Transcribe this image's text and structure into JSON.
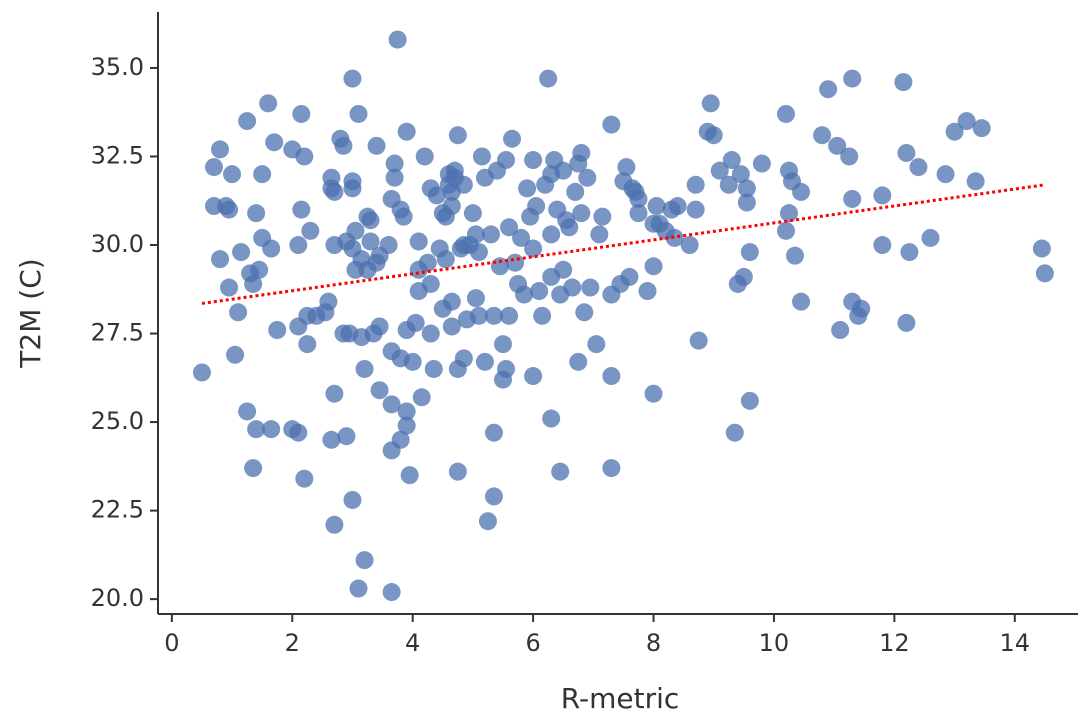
{
  "chart_data": {
    "type": "scatter",
    "xlabel": "R-metric",
    "ylabel": "T2M (C)",
    "color": "#4c72b0",
    "x": [
      0.5,
      0.7,
      0.7,
      0.8,
      0.8,
      0.95,
      0.9,
      0.95,
      1.0,
      1.05,
      1.1,
      1.15,
      1.25,
      1.25,
      1.3,
      1.35,
      1.35,
      1.4,
      1.4,
      1.45,
      1.5,
      1.5,
      1.6,
      1.65,
      1.65,
      1.7,
      1.75,
      2.0,
      2.0,
      2.1,
      2.1,
      2.1,
      2.15,
      2.15,
      2.2,
      2.25,
      2.25,
      2.2,
      2.3,
      2.4,
      2.55,
      2.6,
      2.65,
      2.65,
      2.65,
      2.7,
      2.7,
      2.7,
      2.7,
      2.8,
      2.85,
      2.85,
      2.9,
      2.9,
      2.95,
      3.0,
      3.0,
      3.0,
      3.05,
      3.05,
      3.0,
      3.0,
      3.1,
      3.15,
      3.15,
      3.1,
      3.2,
      3.2,
      3.25,
      3.25,
      3.3,
      3.3,
      3.35,
      3.4,
      3.4,
      3.45,
      3.45,
      3.45,
      3.6,
      3.65,
      3.65,
      3.65,
      3.65,
      3.65,
      3.7,
      3.7,
      3.75,
      3.8,
      3.8,
      3.8,
      3.85,
      3.9,
      3.9,
      3.9,
      3.9,
      3.95,
      4.0,
      4.05,
      4.1,
      4.1,
      4.1,
      4.15,
      4.2,
      4.25,
      4.3,
      4.3,
      4.3,
      4.35,
      4.4,
      4.45,
      4.5,
      4.5,
      4.55,
      4.55,
      4.6,
      4.6,
      4.65,
      4.65,
      4.65,
      4.65,
      4.7,
      4.7,
      4.75,
      4.75,
      4.75,
      4.8,
      4.85,
      4.85,
      4.85,
      4.9,
      4.95,
      5.0,
      5.05,
      5.05,
      5.1,
      5.1,
      5.15,
      5.2,
      5.2,
      5.25,
      5.3,
      5.35,
      5.35,
      5.35,
      5.4,
      5.45,
      5.5,
      5.5,
      5.55,
      5.55,
      5.6,
      5.6,
      5.65,
      5.7,
      5.75,
      5.8,
      5.85,
      5.9,
      5.95,
      6.0,
      6.0,
      6.0,
      6.05,
      6.1,
      6.15,
      6.2,
      6.25,
      6.3,
      6.3,
      6.3,
      6.3,
      6.35,
      6.4,
      6.45,
      6.45,
      6.5,
      6.5,
      6.55,
      6.6,
      6.65,
      6.7,
      6.75,
      6.75,
      6.8,
      6.8,
      6.85,
      6.9,
      6.95,
      7.05,
      7.1,
      7.15,
      7.3,
      7.3,
      7.3,
      7.3,
      7.45,
      7.5,
      7.55,
      7.6,
      7.65,
      7.7,
      7.75,
      7.75,
      7.9,
      8.0,
      8.0,
      8.0,
      8.05,
      8.1,
      8.2,
      8.3,
      8.35,
      8.4,
      8.6,
      8.7,
      8.7,
      8.75,
      8.9,
      8.95,
      9.0,
      9.1,
      9.25,
      9.3,
      9.35,
      9.4,
      9.45,
      9.5,
      9.55,
      9.55,
      9.6,
      9.6,
      9.8,
      10.2,
      10.2,
      10.25,
      10.25,
      10.3,
      10.35,
      10.45,
      10.45,
      10.8,
      10.9,
      11.05,
      11.1,
      11.25,
      11.3,
      11.3,
      11.3,
      11.4,
      11.45,
      11.8,
      11.8,
      12.15,
      12.2,
      12.2,
      12.25,
      12.4,
      12.6,
      12.85,
      13.0,
      13.2,
      13.35,
      13.45,
      14.45,
      14.5
    ],
    "values": [
      26.4,
      32.2,
      31.1,
      32.7,
      29.6,
      31.0,
      31.1,
      28.8,
      32.0,
      26.9,
      28.1,
      29.8,
      33.5,
      25.3,
      29.2,
      28.9,
      23.7,
      30.9,
      24.8,
      29.3,
      32.0,
      30.2,
      34.0,
      29.9,
      24.8,
      32.9,
      27.6,
      32.7,
      24.8,
      24.7,
      27.7,
      30.0,
      33.7,
      31.0,
      32.5,
      28.0,
      27.2,
      23.4,
      30.4,
      28.0,
      28.1,
      28.4,
      24.5,
      31.6,
      31.9,
      31.5,
      30.0,
      25.8,
      22.1,
      33.0,
      32.8,
      27.5,
      24.6,
      30.1,
      27.5,
      31.6,
      31.8,
      29.9,
      30.4,
      29.3,
      22.8,
      34.7,
      33.7,
      29.6,
      27.4,
      20.3,
      26.5,
      21.1,
      30.8,
      29.3,
      30.7,
      30.1,
      27.5,
      29.5,
      32.8,
      27.7,
      25.9,
      29.7,
      30.0,
      31.3,
      27.0,
      25.5,
      24.2,
      20.2,
      32.3,
      31.9,
      35.8,
      26.8,
      24.5,
      31.0,
      30.8,
      33.2,
      27.6,
      25.3,
      24.9,
      23.5,
      26.7,
      27.8,
      29.3,
      28.7,
      30.1,
      25.7,
      32.5,
      29.5,
      31.6,
      28.9,
      27.5,
      26.5,
      31.4,
      29.9,
      30.9,
      28.2,
      30.8,
      29.6,
      32.0,
      31.7,
      31.5,
      31.1,
      28.4,
      27.7,
      32.1,
      31.9,
      33.1,
      26.5,
      23.6,
      29.9,
      31.7,
      30.0,
      26.8,
      27.9,
      30.0,
      30.9,
      30.3,
      28.5,
      29.8,
      28.0,
      32.5,
      31.9,
      26.7,
      22.2,
      30.3,
      28.0,
      24.7,
      22.9,
      32.1,
      29.4,
      27.2,
      26.2,
      26.5,
      32.4,
      30.5,
      28.0,
      33.0,
      29.5,
      28.9,
      30.2,
      28.6,
      31.6,
      30.8,
      32.4,
      29.9,
      26.3,
      31.1,
      28.7,
      28.0,
      31.7,
      34.7,
      32.0,
      30.3,
      29.1,
      25.1,
      32.4,
      31.0,
      28.6,
      23.6,
      32.1,
      29.3,
      30.7,
      30.5,
      28.8,
      31.5,
      32.3,
      26.7,
      32.6,
      30.9,
      28.1,
      31.9,
      28.8,
      27.2,
      30.3,
      30.8,
      33.4,
      28.6,
      26.3,
      23.7,
      28.9,
      31.8,
      32.2,
      29.1,
      31.6,
      31.5,
      31.3,
      30.9,
      28.7,
      30.6,
      29.4,
      25.8,
      31.1,
      30.6,
      30.4,
      31.0,
      30.2,
      31.1,
      30.0,
      31.7,
      31.0,
      27.3,
      33.2,
      34.0,
      33.1,
      32.1,
      31.7,
      32.4,
      24.7,
      28.9,
      32.0,
      29.1,
      31.6,
      31.2,
      25.6,
      29.8,
      32.3,
      33.7,
      30.4,
      32.1,
      30.9,
      31.8,
      29.7,
      31.5,
      28.4,
      33.1,
      34.4,
      32.8,
      27.6,
      32.5,
      34.7,
      31.3,
      28.4,
      28.0,
      28.2,
      31.4,
      30.0,
      34.6,
      32.6,
      27.8,
      29.8,
      32.2,
      30.2,
      32.0,
      33.2,
      33.5,
      31.8,
      33.3,
      29.9,
      29.2
    ],
    "trend": {
      "x": [
        0.5,
        14.5
      ],
      "y": [
        28.35,
        31.7
      ],
      "color": "#ff0000"
    },
    "xlim": [
      -0.23,
      15.05
    ],
    "ylim": [
      19.58,
      36.58
    ],
    "xticks": [
      0,
      2,
      4,
      6,
      8,
      10,
      12,
      14
    ],
    "yticks": [
      {
        "value": 20,
        "label": "20.0"
      },
      22.5,
      {
        "value": 25,
        "label": "25.0"
      },
      27.5,
      {
        "value": 30,
        "label": "30.0"
      },
      32.5,
      {
        "value": 35,
        "label": "35.0"
      }
    ],
    "grid": false
  }
}
